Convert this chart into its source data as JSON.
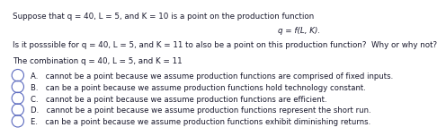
{
  "title_line1": "Suppose that q = 40, L = 5, and K = 10 is a point on the production function",
  "formula": "q = f(L, K).",
  "question": "Is it posssible for q = 40, L = 5, and K = 11 to also be a point on this production function?  Why or why not?",
  "combo_line": "The combination q = 40, L = 5, and K = 11",
  "options": [
    "A.   cannot be a point because we assume production functions are comprised of fixed inputs.",
    "B.   can be a point because we assume production functions hold technology constant.",
    "C.   cannot be a point because we assume production functions are efficient.",
    "D.   cannot be a point because we assume production functions represent the short run.",
    "E.   can be a point because we assume production functions exhibit diminishing returns."
  ],
  "bg_color": "#ffffff",
  "text_color": "#1a1a2e",
  "font_size_title": 6.3,
  "font_size_options": 6.1
}
